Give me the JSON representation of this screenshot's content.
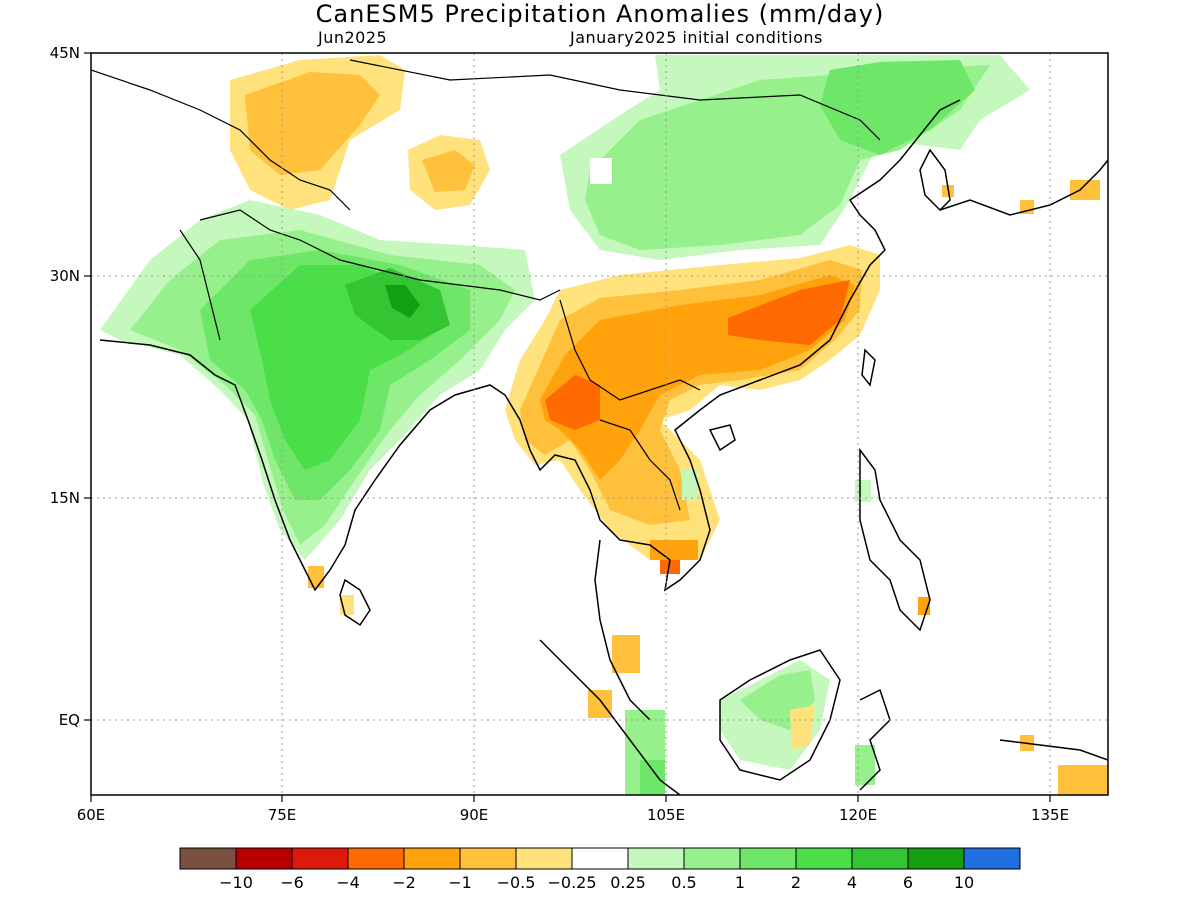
{
  "title": "CanESM5 Precipitation Anomalies (mm/day)",
  "subtitle_left": "Jun2025",
  "subtitle_right": "January2025 initial conditions",
  "axes": {
    "lon_ticks": [
      "60E",
      "75E",
      "90E",
      "105E",
      "120E",
      "135E"
    ],
    "lat_ticks": [
      "45N",
      "30N",
      "15N",
      "EQ"
    ]
  },
  "colorbar": {
    "colors": [
      "#7a5040",
      "#b80000",
      "#dd1a0a",
      "#ff6a00",
      "#ffa20c",
      "#ffc03c",
      "#ffe27c",
      "#ffffff",
      "#c4f8bc",
      "#96f08c",
      "#6ee668",
      "#4ade48",
      "#34c532",
      "#12a012",
      "#1f6fe0"
    ],
    "labels": [
      "−10",
      "−6",
      "−4",
      "−2",
      "−1",
      "−0.5",
      "−0.25",
      "0.25",
      "0.5",
      "1",
      "2",
      "4",
      "6",
      "10"
    ]
  },
  "palette": {
    "green_light": "#c4f8bc",
    "green_1": "#96f08c",
    "green_2": "#6ee668",
    "green_3": "#4ade48",
    "green_4": "#34c532",
    "green_5": "#12a012",
    "tan_1": "#ffe27c",
    "tan_2": "#ffc03c",
    "orange_1": "#ffa20c",
    "orange_2": "#ff6a00"
  }
}
